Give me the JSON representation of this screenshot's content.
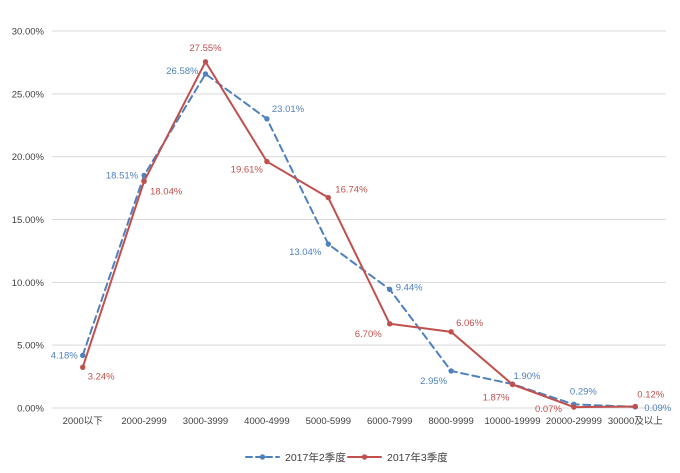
{
  "chart_data": {
    "type": "line",
    "title": "",
    "xlabel": "",
    "ylabel": "",
    "grid": true,
    "legend_position": "bottom",
    "categories": [
      "2000以下",
      "2000-2999",
      "3000-3999",
      "4000-4999",
      "5000-5999",
      "6000-7999",
      "8000-9999",
      "10000-19999",
      "20000-29999",
      "30000及以上"
    ],
    "y_axis": {
      "min": 0,
      "max": 30,
      "step": 5,
      "tick_labels": [
        "0.00%",
        "5.00%",
        "10.00%",
        "15.00%",
        "20.00%",
        "25.00%",
        "30.00%"
      ]
    },
    "series": [
      {
        "name": "2017年2季度",
        "color": "#4F81BD",
        "line_style": "dashed",
        "values": [
          4.18,
          18.51,
          26.58,
          23.01,
          13.04,
          9.44,
          2.95,
          1.9,
          0.29,
          0.09
        ],
        "labels": [
          "4.18%",
          "18.51%",
          "26.58%",
          "23.01%",
          "13.04%",
          "9.44%",
          "2.95%",
          "1.90%",
          "0.29%",
          "0.09%"
        ]
      },
      {
        "name": "2017年3季度",
        "color": "#C0504D",
        "line_style": "solid",
        "values": [
          3.24,
          18.04,
          27.55,
          19.61,
          16.74,
          6.7,
          6.06,
          1.87,
          0.07,
          0.12
        ],
        "labels": [
          "3.24%",
          "18.04%",
          "27.55%",
          "19.61%",
          "16.74%",
          "6.70%",
          "6.06%",
          "1.87%",
          "0.07%",
          "0.12%"
        ]
      }
    ]
  },
  "colors": {
    "background": "#FFFFFF",
    "gridline": "#D9D9D9",
    "axis_text": "#404040",
    "legend_text": "#404040"
  }
}
